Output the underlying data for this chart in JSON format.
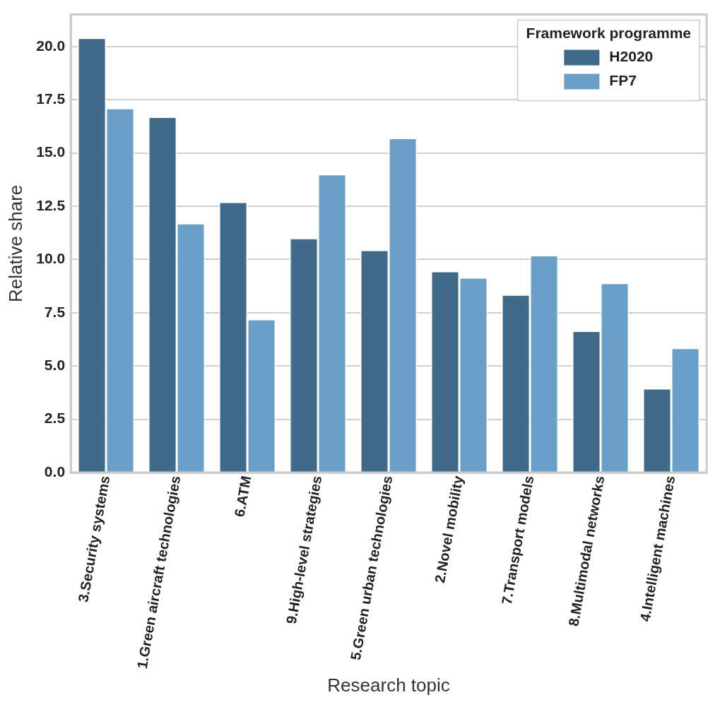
{
  "chart_data": {
    "type": "bar",
    "xlabel": "Research topic",
    "ylabel": "Relative share",
    "legend_title": "Framework programme",
    "categories": [
      "3.Security systems",
      "1.Green aircraft technologies",
      "6.ATM",
      "9.High-level strategies",
      "5.Green urban technologies",
      "2.Novel mobility",
      "7.Transport models",
      "8.Multimodal networks",
      "4.Intelligent machines"
    ],
    "series": [
      {
        "name": "H2020",
        "color": "#3f6a8a",
        "values": [
          20.4,
          16.7,
          12.7,
          11.0,
          10.45,
          9.45,
          8.35,
          6.65,
          3.95
        ]
      },
      {
        "name": "FP7",
        "color": "#6a9fc8",
        "values": [
          17.1,
          11.7,
          7.2,
          14.0,
          15.7,
          9.15,
          10.2,
          8.9,
          5.85
        ]
      }
    ],
    "ylim": [
      0,
      21.5
    ],
    "yticks": [
      {
        "value": 0,
        "label": "0.0"
      },
      {
        "value": 2.5,
        "label": "2.5"
      },
      {
        "value": 5,
        "label": "5.0"
      },
      {
        "value": 7.5,
        "label": "7.5"
      },
      {
        "value": 10,
        "label": "10.0"
      },
      {
        "value": 12.5,
        "label": "12.5"
      },
      {
        "value": 15,
        "label": "15.0"
      },
      {
        "value": 17.5,
        "label": "17.5"
      },
      {
        "value": 20,
        "label": "20.0"
      }
    ],
    "grid": "y",
    "legend": "top right"
  }
}
